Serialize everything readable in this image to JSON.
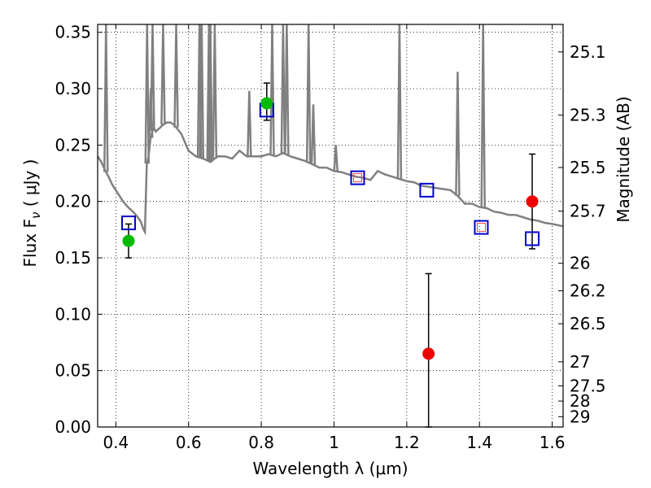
{
  "chart_data": {
    "type": "scatter",
    "xlabel": "Wavelength  λ (μm)",
    "ylabel": "Flux  F",
    "ylabel_sub": "ν",
    "ylabel_unit": " ( μJy )",
    "y2label": "Magnitude (AB)",
    "xlim": [
      0.35,
      1.63
    ],
    "ylim": [
      0.0,
      0.357
    ],
    "xticks": [
      0.4,
      0.6,
      0.8,
      1.0,
      1.2,
      1.4,
      1.6
    ],
    "xtick_labels": [
      "0.4",
      "0.6",
      "0.8",
      "1",
      "1.2",
      "1.4",
      "1.6"
    ],
    "yticks": [
      0.0,
      0.05,
      0.1,
      0.15,
      0.2,
      0.25,
      0.3,
      0.35
    ],
    "ytick_labels": [
      "0.00",
      "0.05",
      "0.10",
      "0.15",
      "0.20",
      "0.25",
      "0.30",
      "0.35"
    ],
    "y2ticks": [
      25.1,
      25.3,
      25.5,
      25.7,
      26,
      26.2,
      26.5,
      27,
      27.5,
      28,
      29
    ],
    "y2tick_labels": [
      "25.1",
      "25.3",
      "25.5",
      "25.7",
      "26",
      "26.2",
      "26.5",
      "27",
      "27.5",
      "28",
      "29"
    ],
    "grid": true,
    "colors": {
      "model": "#808080",
      "model_points": "#0000cc",
      "model_points_inner": "#ff4444",
      "detections": "#00bb00",
      "upper": "#ee0000",
      "errorbar": "#000000"
    },
    "series": [
      {
        "kind": "model_spectrum",
        "x": [
          0.35,
          0.36,
          0.37,
          0.38,
          0.39,
          0.4,
          0.41,
          0.42,
          0.43,
          0.44,
          0.45,
          0.46,
          0.465,
          0.47,
          0.475,
          0.48,
          0.485,
          0.49,
          0.495,
          0.5,
          0.505,
          0.51,
          0.52,
          0.53,
          0.54,
          0.55,
          0.56,
          0.58,
          0.6,
          0.62,
          0.64,
          0.66,
          0.68,
          0.7,
          0.72,
          0.74,
          0.76,
          0.78,
          0.8,
          0.82,
          0.84,
          0.86,
          0.88,
          0.9,
          0.92,
          0.94,
          0.96,
          0.98,
          1.0,
          1.02,
          1.04,
          1.06,
          1.08,
          1.1,
          1.12,
          1.14,
          1.16,
          1.18,
          1.2,
          1.22,
          1.24,
          1.26,
          1.28,
          1.3,
          1.32,
          1.34,
          1.36,
          1.38,
          1.4,
          1.42,
          1.44,
          1.46,
          1.48,
          1.5,
          1.52,
          1.54,
          1.56,
          1.58,
          1.6,
          1.63
        ],
        "y": [
          0.24,
          0.235,
          0.228,
          0.222,
          0.215,
          0.21,
          0.205,
          0.2,
          0.196,
          0.193,
          0.19,
          0.186,
          0.184,
          0.181,
          0.176,
          0.173,
          0.232,
          0.24,
          0.255,
          0.262,
          0.265,
          0.262,
          0.265,
          0.268,
          0.27,
          0.27,
          0.268,
          0.26,
          0.245,
          0.24,
          0.238,
          0.235,
          0.24,
          0.24,
          0.238,
          0.245,
          0.24,
          0.24,
          0.24,
          0.242,
          0.24,
          0.243,
          0.24,
          0.238,
          0.236,
          0.233,
          0.23,
          0.23,
          0.227,
          0.226,
          0.224,
          0.222,
          0.221,
          0.219,
          0.227,
          0.224,
          0.222,
          0.22,
          0.218,
          0.217,
          0.214,
          0.213,
          0.212,
          0.211,
          0.21,
          0.205,
          0.198,
          0.198,
          0.195,
          0.194,
          0.191,
          0.19,
          0.188,
          0.188,
          0.186,
          0.184,
          0.183,
          0.181,
          0.18,
          0.178
        ]
      },
      {
        "kind": "emission_lines",
        "x": [
          0.373,
          0.486,
          0.496,
          0.501,
          0.53,
          0.566,
          0.63,
          0.636,
          0.656,
          0.66,
          0.672,
          0.767,
          0.83,
          0.86,
          0.87,
          0.93,
          0.943,
          1.005,
          1.18,
          1.34,
          1.41
        ],
        "y": [
          0.357,
          0.357,
          0.3,
          0.357,
          0.357,
          0.357,
          0.357,
          0.357,
          0.357,
          0.357,
          0.357,
          0.298,
          0.357,
          0.357,
          0.357,
          0.357,
          0.286,
          0.25,
          0.357,
          0.315,
          0.357
        ]
      },
      {
        "kind": "model_points",
        "x": [
          0.435,
          0.815,
          1.065,
          1.255,
          1.405,
          1.545
        ],
        "y": [
          0.181,
          0.281,
          0.221,
          0.21,
          0.177,
          0.167
        ],
        "inner": [
          false,
          false,
          true,
          false,
          true,
          false
        ]
      },
      {
        "kind": "observed",
        "x": [
          0.435,
          0.815,
          1.26,
          1.545
        ],
        "y": [
          0.165,
          0.287,
          0.065,
          0.2
        ],
        "yerr_low": [
          0.015,
          0.015,
          0.065,
          0.042
        ],
        "yerr_high": [
          0.015,
          0.018,
          0.071,
          0.042
        ],
        "color": [
          "detections",
          "detections",
          "upper",
          "upper"
        ]
      }
    ]
  }
}
